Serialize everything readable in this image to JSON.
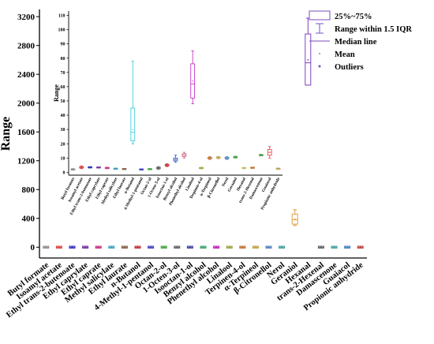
{
  "chart_data": [
    {
      "type": "box",
      "ylabel": "Range",
      "xlabel": "",
      "ylim": [
        -150,
        3300
      ],
      "yticks": [
        0,
        400,
        800,
        1200,
        1600,
        2000,
        2400,
        2800,
        3200
      ],
      "categories": [
        "Butyl formate",
        "Isoamyl acetate",
        "Ethyl trans-2-butenoate",
        "Ethyl caprylate",
        "Ethyl caprate",
        "Methyl salicylate",
        "Ethyl laurate",
        "n-Butanol",
        "4-Methyl-1-pentanol",
        "Octan-2-ol",
        "1-Octen-3-ol",
        "Isooctan-1-ol",
        "Benzyl alcohol",
        "Phenethyl alcohol",
        "Linalool",
        "Terpinen-4-ol",
        "α-Terpineol",
        "β-Citronellol",
        "Nerol",
        "Geraniol",
        "Hexanal",
        "trans-2-Hexenal",
        "Damascenone",
        "Guaiacol",
        "Propionic anhydride"
      ],
      "boxes": [
        {
          "min": 0,
          "q1": 0,
          "median": 0,
          "q3": 0,
          "max": 0,
          "mean": 0
        },
        {
          "min": 0,
          "q1": 0,
          "median": 0,
          "q3": 0,
          "max": 0,
          "mean": 0
        },
        {
          "min": 0,
          "q1": 0,
          "median": 0,
          "q3": 0,
          "max": 0,
          "mean": 0
        },
        {
          "min": 0,
          "q1": 0,
          "median": 0,
          "q3": 0,
          "max": 0,
          "mean": 0
        },
        {
          "min": 0,
          "q1": 0,
          "median": 0,
          "q3": 0,
          "max": 0,
          "mean": 0
        },
        {
          "min": 0,
          "q1": 0,
          "median": 0,
          "q3": 0,
          "max": 0,
          "mean": 0
        },
        {
          "min": 0,
          "q1": 0,
          "median": 0,
          "q3": 0,
          "max": 0,
          "mean": 0
        },
        {
          "min": 0,
          "q1": 0,
          "median": 0,
          "q3": 0,
          "max": 0,
          "mean": 0
        },
        {
          "min": 0,
          "q1": 0,
          "median": 0,
          "q3": 0,
          "max": 0,
          "mean": 0
        },
        {
          "min": 0,
          "q1": 0,
          "median": 0,
          "q3": 0,
          "max": 0,
          "mean": 0
        },
        {
          "min": 0,
          "q1": 0,
          "median": 0,
          "q3": 0,
          "max": 0,
          "mean": 0
        },
        {
          "min": 0,
          "q1": 0,
          "median": 0,
          "q3": 0,
          "max": 0,
          "mean": 0
        },
        {
          "min": 0,
          "q1": 0,
          "median": 0,
          "q3": 0,
          "max": 0,
          "mean": 0
        },
        {
          "min": 0,
          "q1": 0,
          "median": 0,
          "q3": 0,
          "max": 0,
          "mean": 0
        },
        {
          "min": 0,
          "q1": 0,
          "median": 0,
          "q3": 0,
          "max": 0,
          "mean": 0
        },
        {
          "min": 0,
          "q1": 0,
          "median": 0,
          "q3": 0,
          "max": 0,
          "mean": 0
        },
        {
          "min": 0,
          "q1": 0,
          "median": 0,
          "q3": 0,
          "max": 0,
          "mean": 0
        },
        {
          "min": 0,
          "q1": 0,
          "median": 0,
          "q3": 0,
          "max": 0,
          "mean": 0
        },
        {
          "min": 0,
          "q1": 0,
          "median": 0,
          "q3": 0,
          "max": 0,
          "mean": 0
        },
        {
          "min": 300,
          "q1": 320,
          "median": 380,
          "q3": 460,
          "max": 520,
          "mean": 390
        },
        {
          "min": 2250,
          "q1": 2250,
          "median": 2560,
          "q3": 2960,
          "max": 3180,
          "mean": 2600
        },
        {
          "min": 0,
          "q1": 0,
          "median": 0,
          "q3": 0,
          "max": 0,
          "mean": 0
        },
        {
          "min": 0,
          "q1": 0,
          "median": 0,
          "q3": 0,
          "max": 0,
          "mean": 0
        },
        {
          "min": 0,
          "q1": 0,
          "median": 0,
          "q3": 0,
          "max": 0,
          "mean": 0
        },
        {
          "min": 0,
          "q1": 0,
          "median": 0,
          "q3": 0,
          "max": 0,
          "mean": 0
        }
      ],
      "colors": [
        "#8a8a8a",
        "#d94040",
        "#3030c0",
        "#7030a0",
        "#c03080",
        "#3aa0c0",
        "#806040",
        "#c03030",
        "#4040c0",
        "#40a040",
        "#606060",
        "#4040a0",
        "#3aa070",
        "#c020c0",
        "#a0a040",
        "#c07030",
        "#c0a040",
        "#5080c0",
        "#40a0a0",
        "#e0a040",
        "#8040c0",
        "#606060",
        "#40a0a0",
        "#4080c0",
        "#c04040"
      ],
      "legend": {
        "placement": "top-right",
        "items": [
          "25%~75%",
          "Range within 1.5 IQR",
          "Median line",
          "Mean",
          "Outliers"
        ],
        "color": "#7b4fc0"
      }
    },
    {
      "type": "box",
      "ylabel": "Range",
      "xlabel": "",
      "ylim": [
        -2,
        113
      ],
      "yticks": [
        0,
        10,
        20,
        30,
        40,
        50,
        60,
        70,
        80,
        90,
        100,
        110
      ],
      "categories": [
        "Butyl formate",
        "Isoamyl acetate",
        "Ethyl trans-2-butenoate",
        "Ethyl caprylate",
        "Ethyl caprate",
        "Methyl salicylate",
        "Ethyl laurate",
        "n-Butanol",
        "4-Methyl-1-pentanol",
        "Octan-2-ol",
        "1-Octen-3-ol",
        "Isooctan-1-ol",
        "Benzyl alcohol",
        "Phenethyl alcohol",
        "Linalool",
        "Terpinen-4-ol",
        "α-Terpineol",
        "β-Citronellol",
        "Nerol",
        "Geraniol",
        "Hexanal",
        "trans-2-Hexenal",
        "Damascenone",
        "Guaiacol",
        "Propionic anhydride"
      ],
      "boxes": [
        {
          "min": 1.5,
          "q1": 1.8,
          "median": 2,
          "q3": 2.3,
          "max": 2.6,
          "mean": 2
        },
        {
          "min": 2.5,
          "q1": 3,
          "median": 3.5,
          "q3": 4,
          "max": 4.5,
          "mean": 3.5
        },
        {
          "min": 3,
          "q1": 3.2,
          "median": 3.5,
          "q3": 3.8,
          "max": 4,
          "mean": 3.5
        },
        {
          "min": 3,
          "q1": 3.2,
          "median": 3.4,
          "q3": 3.6,
          "max": 3.8,
          "mean": 3.4
        },
        {
          "min": 2.5,
          "q1": 2.8,
          "median": 3,
          "q3": 3.3,
          "max": 3.5,
          "mean": 3
        },
        {
          "min": 2,
          "q1": 2.2,
          "median": 2.5,
          "q3": 2.7,
          "max": 3,
          "mean": 2.5
        },
        {
          "min": 2,
          "q1": 2.1,
          "median": 2.3,
          "q3": 2.5,
          "max": 2.6,
          "mean": 2.3
        },
        {
          "min": 20,
          "q1": 22,
          "median": 28,
          "q3": 45,
          "max": 78,
          "mean": 30
        },
        {
          "min": 1.5,
          "q1": 1.7,
          "median": 2,
          "q3": 2.2,
          "max": 2.4,
          "mean": 2
        },
        {
          "min": 1.8,
          "q1": 2,
          "median": 2.2,
          "q3": 2.4,
          "max": 2.6,
          "mean": 2.2
        },
        {
          "min": 2,
          "q1": 2.5,
          "median": 3,
          "q3": 3.5,
          "max": 4,
          "mean": 3
        },
        {
          "min": 4,
          "q1": 4.5,
          "median": 5,
          "q3": 5.5,
          "max": 6,
          "mean": 5
        },
        {
          "min": 7,
          "q1": 8,
          "median": 9,
          "q3": 10,
          "max": 12,
          "mean": 9
        },
        {
          "min": 10,
          "q1": 11,
          "median": 12,
          "q3": 13,
          "max": 14,
          "mean": 12
        },
        {
          "min": 48,
          "q1": 52,
          "median": 62,
          "q3": 76,
          "max": 85,
          "mean": 64
        },
        {
          "min": 2.5,
          "q1": 2.8,
          "median": 3,
          "q3": 3.2,
          "max": 3.4,
          "mean": 3
        },
        {
          "min": 9,
          "q1": 9.5,
          "median": 10,
          "q3": 10.5,
          "max": 11,
          "mean": 10
        },
        {
          "min": 9.5,
          "q1": 10,
          "median": 10.3,
          "q3": 10.8,
          "max": 11,
          "mean": 10.3
        },
        {
          "min": 9,
          "q1": 9.5,
          "median": 10,
          "q3": 10.5,
          "max": 11,
          "mean": 10
        },
        {
          "min": 10,
          "q1": 10.3,
          "median": 10.6,
          "q3": 11,
          "max": 11.3,
          "mean": 10.6
        },
        {
          "min": 2.5,
          "q1": 2.8,
          "median": 3,
          "q3": 3.2,
          "max": 3.4,
          "mean": 3
        },
        {
          "min": 2.8,
          "q1": 3,
          "median": 3.2,
          "q3": 3.4,
          "max": 3.6,
          "mean": 3.2
        },
        {
          "min": 11.5,
          "q1": 11.8,
          "median": 12,
          "q3": 12.3,
          "max": 12.6,
          "mean": 12
        },
        {
          "min": 10,
          "q1": 12,
          "median": 14,
          "q3": 16,
          "max": 18,
          "mean": 14
        },
        {
          "min": 2,
          "q1": 2.2,
          "median": 2.5,
          "q3": 2.7,
          "max": 3,
          "mean": 2.5
        }
      ],
      "colors": [
        "#8a8a8a",
        "#d94040",
        "#3030c0",
        "#7030a0",
        "#c03080",
        "#3aa0c0",
        "#806040",
        "#2ec8d6",
        "#4040c0",
        "#40a040",
        "#606060",
        "#c03030",
        "#3050c0",
        "#c06080",
        "#c020c0",
        "#a0a040",
        "#c07030",
        "#c0a040",
        "#5080c0",
        "#40a040",
        "#c0c060",
        "#c07030",
        "#40a040",
        "#e04040",
        "#c0a060"
      ]
    }
  ]
}
